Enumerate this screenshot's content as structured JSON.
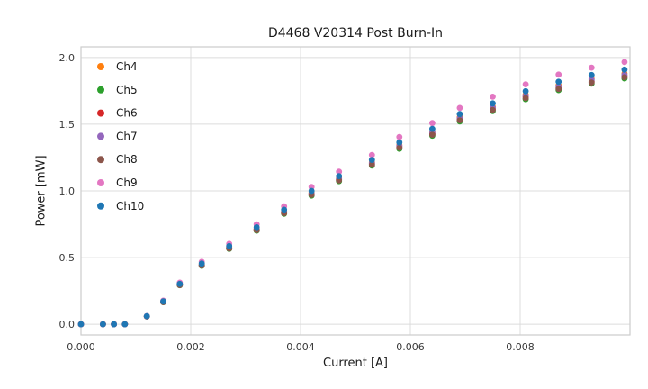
{
  "figure": {
    "title": "D4468 V20314 Post Burn-In",
    "xlabel": "Current [A]",
    "ylabel": "Power [mW]"
  },
  "chart_data": {
    "type": "scatter",
    "title": "D4468 V20314 Post Burn-In",
    "xlabel": "Current [A]",
    "ylabel": "Power [mW]",
    "grid": true,
    "legend_position": "upper left",
    "xlim": [
      0.0,
      0.01
    ],
    "ylim": [
      -0.08,
      2.08
    ],
    "xticks": [
      {
        "v": 0.0,
        "label": "0.000"
      },
      {
        "v": 0.002,
        "label": "0.002"
      },
      {
        "v": 0.004,
        "label": "0.004"
      },
      {
        "v": 0.006,
        "label": "0.006"
      },
      {
        "v": 0.008,
        "label": "0.008"
      }
    ],
    "yticks": [
      {
        "v": 0.0,
        "label": "0.0"
      },
      {
        "v": 0.5,
        "label": "0.5"
      },
      {
        "v": 1.0,
        "label": "1.0"
      },
      {
        "v": 1.5,
        "label": "1.5"
      },
      {
        "v": 2.0,
        "label": "2.0"
      }
    ],
    "x": [
      0.0,
      0.0004,
      0.0006,
      0.0008,
      0.0012,
      0.0015,
      0.0018,
      0.0022,
      0.0027,
      0.0032,
      0.0037,
      0.0042,
      0.0047,
      0.0053,
      0.0058,
      0.0064,
      0.0069,
      0.0075,
      0.0081,
      0.0087,
      0.0093,
      0.0099
    ],
    "series": [
      {
        "name": "Ch4",
        "color": "#ff7f0e",
        "values": [
          0,
          0,
          0,
          0,
          0.06,
          0.169,
          0.299,
          0.448,
          0.577,
          0.716,
          0.846,
          0.985,
          1.095,
          1.214,
          1.343,
          1.443,
          1.552,
          1.632,
          1.721,
          1.791,
          1.841,
          1.881
        ]
      },
      {
        "name": "Ch5",
        "color": "#2ca02c",
        "values": [
          0,
          0,
          0,
          0,
          0.059,
          0.166,
          0.293,
          0.439,
          0.566,
          0.702,
          0.829,
          0.965,
          1.073,
          1.19,
          1.316,
          1.414,
          1.521,
          1.599,
          1.687,
          1.755,
          1.804,
          1.843
        ]
      },
      {
        "name": "Ch6",
        "color": "#d62728",
        "values": [
          0,
          0,
          0,
          0,
          0.059,
          0.167,
          0.296,
          0.443,
          0.571,
          0.709,
          0.837,
          0.975,
          1.084,
          1.202,
          1.33,
          1.428,
          1.537,
          1.615,
          1.704,
          1.773,
          1.822,
          1.862
        ]
      },
      {
        "name": "Ch7",
        "color": "#9467bd",
        "values": [
          0,
          0,
          0,
          0,
          0.059,
          0.168,
          0.297,
          0.446,
          0.574,
          0.713,
          0.842,
          0.98,
          1.089,
          1.208,
          1.337,
          1.436,
          1.544,
          1.624,
          1.713,
          1.782,
          1.832,
          1.871
        ]
      },
      {
        "name": "Ch8",
        "color": "#8c564b",
        "values": [
          0,
          0,
          0,
          0,
          0.059,
          0.167,
          0.294,
          0.441,
          0.568,
          0.706,
          0.833,
          0.97,
          1.078,
          1.196,
          1.323,
          1.421,
          1.529,
          1.607,
          1.695,
          1.764,
          1.813,
          1.852
        ]
      },
      {
        "name": "Ch9",
        "color": "#e377c2",
        "values": [
          0,
          0,
          0,
          0,
          0.062,
          0.177,
          0.312,
          0.468,
          0.603,
          0.749,
          0.884,
          1.03,
          1.144,
          1.269,
          1.404,
          1.508,
          1.622,
          1.706,
          1.799,
          1.872,
          1.924,
          1.966
        ]
      },
      {
        "name": "Ch10",
        "color": "#1f77b4",
        "values": [
          0,
          0,
          0,
          0,
          0.061,
          0.172,
          0.303,
          0.455,
          0.586,
          0.727,
          0.859,
          1.0,
          1.111,
          1.232,
          1.363,
          1.465,
          1.576,
          1.656,
          1.747,
          1.818,
          1.869,
          1.909
        ]
      }
    ],
    "styles": {
      "background": "#ffffff",
      "grid_color": "#dcdcdc",
      "spine_color": "#cccccc",
      "tick_color": "#3a3a3a",
      "text_color": "#1a1a1a",
      "marker_radius": 3.4,
      "legend_marker_radius": 4
    }
  }
}
